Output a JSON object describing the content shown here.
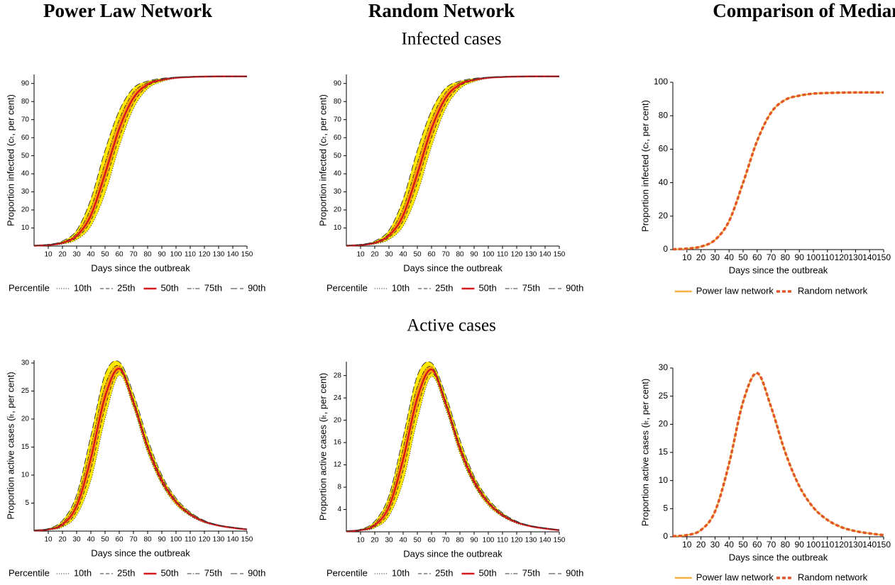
{
  "headers": [
    "Power Law Network",
    "Random Network",
    "Comparison of Medians"
  ],
  "row_titles": [
    "Infected cases",
    "Active cases"
  ],
  "chart_data": [
    {
      "type": "line",
      "x": [
        0,
        10,
        20,
        30,
        40,
        50,
        60,
        70,
        80,
        90,
        100,
        110,
        120,
        130,
        140,
        150
      ],
      "xlim": [
        0,
        150
      ],
      "xticks": [
        10,
        20,
        30,
        40,
        50,
        60,
        70,
        80,
        90,
        100,
        110,
        120,
        130,
        140,
        150
      ],
      "ylim": [
        0,
        95
      ],
      "yticks": [
        10,
        20,
        30,
        40,
        50,
        60,
        70,
        80,
        90
      ],
      "x_label": "Days since the outbreak",
      "y_label": "Proportion infected (cₜ, per cent)",
      "legend_title": "Percentile",
      "band_colors": [
        "#ffe800",
        "#ffa200"
      ],
      "series": [
        {
          "name": "10th",
          "color": "#333333",
          "dash": "dotted",
          "values": [
            0.1,
            0.4,
            1.1,
            3.5,
            11,
            29,
            55,
            76,
            87,
            91,
            92.8,
            93.4,
            93.7,
            93.8,
            93.9,
            93.9
          ]
        },
        {
          "name": "25th",
          "color": "#333333",
          "dash": "dashed",
          "values": [
            0.15,
            0.5,
            1.4,
            4.6,
            14,
            35,
            60,
            79,
            88.5,
            91.6,
            93,
            93.5,
            93.8,
            93.9,
            93.9,
            93.9
          ]
        },
        {
          "name": "50th",
          "color": "#d7191c",
          "dash": "solid",
          "values": [
            0.2,
            0.6,
            1.8,
            5.7,
            17,
            40,
            65,
            82,
            89.5,
            92,
            93.2,
            93.6,
            93.8,
            93.9,
            93.9,
            93.9
          ]
        },
        {
          "name": "75th",
          "color": "#333333",
          "dash": "dashdot",
          "values": [
            0.25,
            0.7,
            2.2,
            7,
            21,
            46,
            70,
            85,
            90.5,
            92.4,
            93.4,
            93.7,
            93.9,
            93.9,
            93.9,
            93.9
          ]
        },
        {
          "name": "90th",
          "color": "#333333",
          "dash": "longdash",
          "values": [
            0.3,
            0.9,
            2.8,
            8.8,
            26,
            53,
            75,
            87.5,
            91.3,
            92.8,
            93.5,
            93.8,
            93.9,
            93.9,
            93.9,
            93.9
          ]
        }
      ]
    },
    {
      "type": "line",
      "x": [
        0,
        10,
        20,
        30,
        40,
        50,
        60,
        70,
        80,
        90,
        100,
        110,
        120,
        130,
        140,
        150
      ],
      "xlim": [
        0,
        150
      ],
      "xticks": [
        10,
        20,
        30,
        40,
        50,
        60,
        70,
        80,
        90,
        100,
        110,
        120,
        130,
        140,
        150
      ],
      "ylim": [
        0,
        95
      ],
      "yticks": [
        10,
        20,
        30,
        40,
        50,
        60,
        70,
        80,
        90
      ],
      "x_label": "Days since the outbreak",
      "y_label": "Proportion infected (cₜ, per cent)",
      "legend_title": "Percentile",
      "band_colors": [
        "#ffe800",
        "#ffa200"
      ],
      "series": [
        {
          "name": "10th",
          "color": "#333333",
          "dash": "dotted",
          "values": [
            0.1,
            0.4,
            1.1,
            3.6,
            11,
            29,
            55,
            76,
            87,
            91,
            92.8,
            93.4,
            93.7,
            93.8,
            93.9,
            93.9
          ]
        },
        {
          "name": "25th",
          "color": "#333333",
          "dash": "dashed",
          "values": [
            0.15,
            0.5,
            1.4,
            4.7,
            14,
            35,
            60,
            79,
            88.5,
            91.6,
            93,
            93.5,
            93.8,
            93.9,
            93.9,
            93.9
          ]
        },
        {
          "name": "50th",
          "color": "#d7191c",
          "dash": "solid",
          "values": [
            0.2,
            0.6,
            1.8,
            5.8,
            17,
            40,
            65,
            82,
            89.5,
            92,
            93.2,
            93.6,
            93.8,
            93.9,
            93.9,
            93.9
          ]
        },
        {
          "name": "75th",
          "color": "#333333",
          "dash": "dashdot",
          "values": [
            0.25,
            0.7,
            2.2,
            7,
            21,
            46,
            70,
            85,
            90.5,
            92.4,
            93.4,
            93.7,
            93.9,
            93.9,
            93.9,
            93.9
          ]
        },
        {
          "name": "90th",
          "color": "#333333",
          "dash": "longdash",
          "values": [
            0.3,
            0.9,
            2.8,
            8.8,
            26,
            53,
            75,
            87.5,
            91.3,
            92.8,
            93.5,
            93.8,
            93.9,
            93.9,
            93.9,
            93.9
          ]
        }
      ]
    },
    {
      "type": "line",
      "x": [
        0,
        10,
        20,
        30,
        40,
        50,
        60,
        70,
        80,
        90,
        100,
        110,
        120,
        130,
        140,
        150
      ],
      "xlim": [
        0,
        150
      ],
      "xticks": [
        10,
        20,
        30,
        40,
        50,
        60,
        70,
        80,
        90,
        100,
        110,
        120,
        130,
        140,
        150
      ],
      "ylim": [
        0,
        100
      ],
      "yticks": [
        0,
        20,
        40,
        60,
        80,
        100
      ],
      "x_label": "Days since the outbreak",
      "y_label": "Proportion infected (cₜ, per cent)",
      "series": [
        {
          "name": "Power law network",
          "color": "#f5b13d",
          "dash": "solid",
          "values": [
            0.2,
            0.6,
            1.8,
            5.7,
            17,
            40,
            65,
            82,
            89.5,
            92,
            93.2,
            93.6,
            93.8,
            93.9,
            93.9,
            93.9
          ]
        },
        {
          "name": "Random network",
          "color": "#e0562a",
          "dash": "dashed",
          "values": [
            0.2,
            0.6,
            1.8,
            5.8,
            17,
            40,
            65,
            82,
            89.5,
            92,
            93.2,
            93.6,
            93.8,
            93.9,
            93.9,
            93.9
          ]
        }
      ]
    },
    {
      "type": "line",
      "x": [
        0,
        10,
        20,
        30,
        40,
        50,
        60,
        70,
        80,
        90,
        100,
        110,
        120,
        130,
        140,
        150
      ],
      "xlim": [
        0,
        150
      ],
      "xticks": [
        10,
        20,
        30,
        40,
        50,
        60,
        70,
        80,
        90,
        100,
        110,
        120,
        130,
        140,
        150
      ],
      "ylim": [
        0,
        30.5
      ],
      "yticks": [
        5,
        10,
        15,
        20,
        25,
        30
      ],
      "x_label": "Days since the outbreak",
      "y_label": "Proportion active cases (iₜ, per cent)",
      "legend_title": "Percentile",
      "band_colors": [
        "#ffe800",
        "#ffa200"
      ],
      "series": [
        {
          "name": "10th",
          "color": "#333333",
          "dash": "dotted",
          "values": [
            0.05,
            0.2,
            0.7,
            2.8,
            9,
            20,
            27.8,
            22,
            14,
            8.3,
            4.7,
            2.7,
            1.5,
            0.9,
            0.5,
            0.25
          ]
        },
        {
          "name": "25th",
          "color": "#333333",
          "dash": "dashed",
          "values": [
            0.08,
            0.25,
            0.9,
            3.6,
            11,
            22,
            28.5,
            22.5,
            14.5,
            8.6,
            5,
            2.8,
            1.6,
            0.95,
            0.55,
            0.28
          ]
        },
        {
          "name": "50th",
          "color": "#d7191c",
          "dash": "solid",
          "values": [
            0.1,
            0.3,
            1.2,
            4.5,
            13,
            24,
            29,
            23,
            15,
            9,
            5.2,
            3,
            1.7,
            1,
            0.6,
            0.3
          ]
        },
        {
          "name": "75th",
          "color": "#333333",
          "dash": "dashdot",
          "values": [
            0.12,
            0.35,
            1.5,
            5.5,
            15,
            26,
            29.5,
            23.5,
            15.5,
            9.5,
            5.5,
            3.2,
            1.8,
            1.05,
            0.65,
            0.32
          ]
        },
        {
          "name": "90th",
          "color": "#333333",
          "dash": "longdash",
          "values": [
            0.15,
            0.45,
            1.9,
            6.5,
            17,
            28,
            30.2,
            24.5,
            16.5,
            10,
            5.9,
            3.4,
            1.9,
            1.1,
            0.7,
            0.35
          ]
        }
      ]
    },
    {
      "type": "line",
      "x": [
        0,
        10,
        20,
        30,
        40,
        50,
        60,
        70,
        80,
        90,
        100,
        110,
        120,
        130,
        140,
        150
      ],
      "xlim": [
        0,
        150
      ],
      "xticks": [
        10,
        20,
        30,
        40,
        50,
        60,
        70,
        80,
        90,
        100,
        110,
        120,
        130,
        140,
        150
      ],
      "ylim": [
        0,
        30.5
      ],
      "yticks": [
        4,
        8,
        12,
        16,
        20,
        24,
        28
      ],
      "x_label": "Days since the outbreak",
      "y_label": "Proportion active cases (iₜ, per cent)",
      "legend_title": "Percentile",
      "band_colors": [
        "#ffe800",
        "#ffa200"
      ],
      "series": [
        {
          "name": "10th",
          "color": "#333333",
          "dash": "dotted",
          "values": [
            0.05,
            0.2,
            0.7,
            2.8,
            9,
            20,
            27.8,
            22,
            14,
            8.3,
            4.7,
            2.7,
            1.5,
            0.9,
            0.5,
            0.25
          ]
        },
        {
          "name": "25th",
          "color": "#333333",
          "dash": "dashed",
          "values": [
            0.08,
            0.25,
            0.9,
            3.6,
            11,
            22,
            28.5,
            22.5,
            14.5,
            8.6,
            5,
            2.8,
            1.6,
            0.95,
            0.55,
            0.28
          ]
        },
        {
          "name": "50th",
          "color": "#d7191c",
          "dash": "solid",
          "values": [
            0.1,
            0.3,
            1.2,
            4.5,
            13,
            24,
            29.1,
            23,
            15,
            9,
            5.2,
            3,
            1.7,
            1,
            0.6,
            0.3
          ]
        },
        {
          "name": "75th",
          "color": "#333333",
          "dash": "dashdot",
          "values": [
            0.12,
            0.35,
            1.5,
            5.5,
            15,
            26,
            29.6,
            23.5,
            15.5,
            9.5,
            5.5,
            3.2,
            1.8,
            1.05,
            0.65,
            0.32
          ]
        },
        {
          "name": "90th",
          "color": "#333333",
          "dash": "longdash",
          "values": [
            0.15,
            0.45,
            1.9,
            6.5,
            17,
            28,
            30.3,
            24.5,
            16.5,
            10,
            5.9,
            3.4,
            1.9,
            1.1,
            0.7,
            0.35
          ]
        }
      ]
    },
    {
      "type": "line",
      "x": [
        0,
        10,
        20,
        30,
        40,
        50,
        60,
        70,
        80,
        90,
        100,
        110,
        120,
        130,
        140,
        150
      ],
      "xlim": [
        0,
        150
      ],
      "xticks": [
        10,
        20,
        30,
        40,
        50,
        60,
        70,
        80,
        90,
        100,
        110,
        120,
        130,
        140,
        150
      ],
      "ylim": [
        0,
        30
      ],
      "yticks": [
        0,
        5,
        10,
        15,
        20,
        25,
        30
      ],
      "x_label": "Days since the outbreak",
      "y_label": "Proportion active cases (iₜ, per cent)",
      "series": [
        {
          "name": "Power law network",
          "color": "#f5b13d",
          "dash": "solid",
          "values": [
            0.1,
            0.3,
            1.2,
            4.5,
            13,
            24,
            29,
            23,
            15,
            9,
            5.2,
            3,
            1.7,
            1,
            0.6,
            0.3
          ]
        },
        {
          "name": "Random network",
          "color": "#e0562a",
          "dash": "dashed",
          "values": [
            0.1,
            0.3,
            1.2,
            4.5,
            13,
            24,
            29.1,
            23,
            15,
            9,
            5.2,
            3,
            1.7,
            1,
            0.6,
            0.3
          ]
        }
      ]
    }
  ]
}
